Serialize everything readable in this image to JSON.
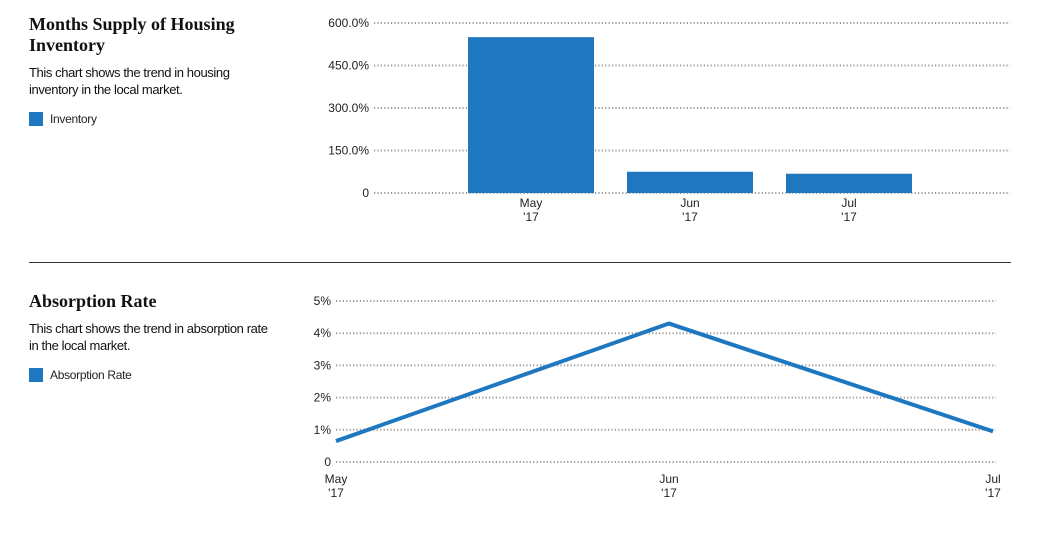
{
  "colors": {
    "series": "#1f77c0",
    "grid": "#9a9a9a",
    "axis": "#555555"
  },
  "chart_data": [
    {
      "type": "bar",
      "title": "Months Supply of Housing Inventory",
      "description": "This chart shows the trend in housing inventory in the local market.",
      "categories": [
        [
          "May",
          "'17"
        ],
        [
          "Jun",
          "'17"
        ],
        [
          "Jul",
          "'17"
        ]
      ],
      "series": [
        {
          "name": "Inventory",
          "values": [
            550,
            75,
            68
          ]
        }
      ],
      "yticks": [
        "0",
        "150.0%",
        "300.0%",
        "450.0%",
        "600.0%"
      ],
      "ylim": [
        0,
        600
      ],
      "grid": true,
      "legend": "left"
    },
    {
      "type": "line",
      "title": "Absorption Rate",
      "description": "This chart shows the trend in absorption rate in the local market.",
      "categories": [
        [
          "May",
          "'17"
        ],
        [
          "Jun",
          "'17"
        ],
        [
          "Jul",
          "'17"
        ]
      ],
      "series": [
        {
          "name": "Absorption Rate",
          "values": [
            0.65,
            4.3,
            0.95
          ]
        }
      ],
      "yticks": [
        "0",
        "1%",
        "2%",
        "3%",
        "4%",
        "5%"
      ],
      "ylim": [
        0,
        5
      ],
      "grid": true,
      "legend": "left"
    }
  ]
}
